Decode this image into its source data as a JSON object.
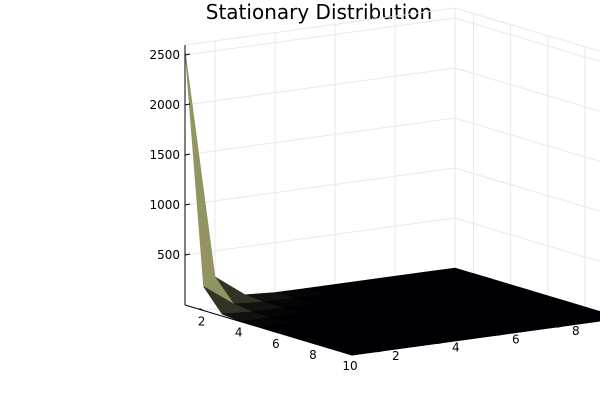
{
  "chart_data": {
    "type": "surface",
    "title": "Stationary Distribution",
    "xlabel": "",
    "ylabel": "",
    "zlabel": "",
    "x_ticks": [
      2,
      4,
      6,
      8,
      10
    ],
    "y_ticks": [
      2,
      4,
      6,
      8,
      10
    ],
    "z_ticks": [
      500,
      1000,
      1500,
      2000,
      2500
    ],
    "xlim": [
      1,
      10
    ],
    "ylim": [
      1,
      10
    ],
    "zlim": [
      0,
      2600
    ],
    "grid": true,
    "colors": {
      "surface": "#000004",
      "surface_peak": "#fcffa4",
      "grid": "#e8e8e8",
      "axis": "#000000"
    },
    "x": [
      1,
      2,
      3,
      4,
      5,
      6,
      7,
      8,
      9,
      10
    ],
    "y": [
      1,
      2,
      3,
      4,
      5,
      6,
      7,
      8,
      9,
      10
    ],
    "z": [
      [
        2550,
        240,
        20,
        2,
        0,
        0,
        0,
        0,
        0,
        0
      ],
      [
        240,
        25,
        2,
        0,
        0,
        0,
        0,
        0,
        0,
        0
      ],
      [
        20,
        2,
        0,
        0,
        0,
        0,
        0,
        0,
        0,
        0
      ],
      [
        2,
        0,
        0,
        0,
        0,
        0,
        0,
        0,
        0,
        0
      ],
      [
        0,
        0,
        0,
        0,
        0,
        0,
        0,
        0,
        0,
        0
      ],
      [
        0,
        0,
        0,
        0,
        0,
        0,
        0,
        0,
        0,
        0
      ],
      [
        0,
        0,
        0,
        0,
        0,
        0,
        0,
        0,
        0,
        0
      ],
      [
        0,
        0,
        0,
        0,
        0,
        0,
        0,
        0,
        0,
        0
      ],
      [
        0,
        0,
        0,
        0,
        0,
        0,
        0,
        0,
        0,
        0
      ],
      [
        0,
        0,
        0,
        0,
        0,
        0,
        0,
        0,
        0,
        0
      ]
    ]
  }
}
